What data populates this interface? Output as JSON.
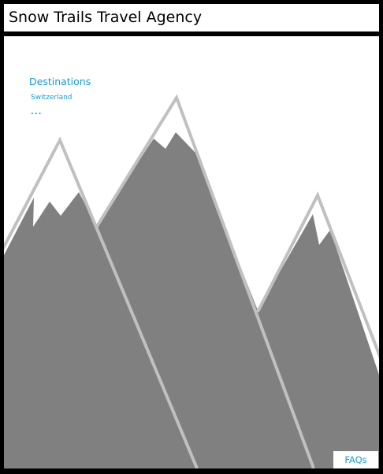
{
  "header": {
    "title": "Snow Trails Travel Agency"
  },
  "nav": {
    "heading": "Destinations",
    "items": [
      {
        "label": "Switzerland"
      }
    ],
    "more_label": "..."
  },
  "footer": {
    "faq_label": "FAQs"
  },
  "colors": {
    "link": "#1a9bd1",
    "mountain": "#808080",
    "mountain_outline": "#c0c0c0",
    "frame": "#000000",
    "background": "#ffffff"
  },
  "hero": {
    "image": "mountain-illustration"
  }
}
